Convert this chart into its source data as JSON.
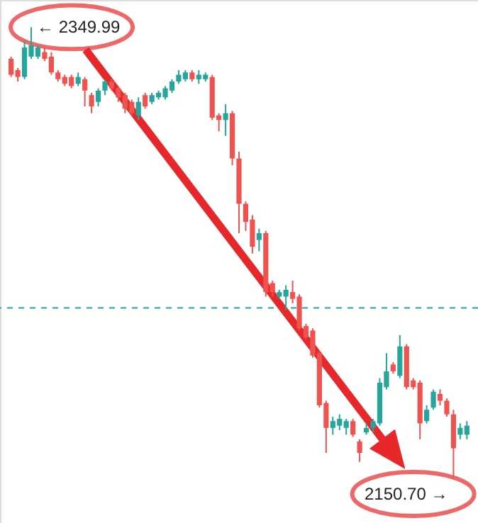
{
  "chart_data": {
    "type": "candlestick",
    "categories": [
      null,
      null,
      null,
      null,
      null,
      null,
      null,
      null,
      null,
      null,
      null,
      null,
      null,
      null,
      null,
      null,
      null,
      null,
      null,
      null,
      null,
      null,
      null,
      null,
      null,
      null,
      null,
      null,
      null,
      null,
      null,
      null,
      null,
      null,
      null,
      null,
      null,
      null,
      null,
      null,
      null,
      null,
      null,
      null,
      null,
      null,
      null,
      null,
      null,
      null,
      null,
      null,
      null,
      null,
      null,
      null,
      null,
      null,
      null,
      null,
      null,
      null,
      null,
      null,
      null,
      null,
      null,
      null,
      null
    ],
    "ohlc": [
      [
        2336,
        2337,
        2328,
        2329
      ],
      [
        2331,
        2332,
        2326,
        2328
      ],
      [
        2328,
        2344,
        2327,
        2341
      ],
      [
        2337,
        2349.99,
        2336,
        2342
      ],
      [
        2337,
        2342,
        2336,
        2341
      ],
      [
        2339,
        2341,
        2335,
        2336
      ],
      [
        2337,
        2339,
        2329,
        2330
      ],
      [
        2330,
        2331,
        2326,
        2327
      ],
      [
        2328,
        2329,
        2324,
        2325
      ],
      [
        2328,
        2329,
        2323,
        2324
      ],
      [
        2325,
        2330,
        2324,
        2328
      ],
      [
        2327,
        2328,
        2315,
        2322
      ],
      [
        2320,
        2321,
        2312,
        2315
      ],
      [
        2317,
        2323,
        2315,
        2322
      ],
      [
        2322,
        2327,
        2320,
        2326
      ],
      [
        2326,
        2327,
        2322,
        2323
      ],
      [
        2323,
        2324,
        2317,
        2319
      ],
      [
        2320,
        2321,
        2312,
        2314
      ],
      [
        2317,
        2318,
        2311,
        2312
      ],
      [
        2311,
        2319,
        2309,
        2317
      ],
      [
        2320,
        2321,
        2314,
        2315
      ],
      [
        2317,
        2321,
        2316,
        2320
      ],
      [
        2319,
        2322,
        2318,
        2321
      ],
      [
        2319,
        2324,
        2318,
        2323
      ],
      [
        2322,
        2327,
        2321,
        2326
      ],
      [
        2326,
        2331,
        2325,
        2329
      ],
      [
        2327,
        2331,
        2326,
        2330
      ],
      [
        2330,
        2331,
        2326,
        2327
      ],
      [
        2327,
        2331,
        2325,
        2329
      ],
      [
        2327,
        2330,
        2326,
        2329
      ],
      [
        2328,
        2329,
        2309,
        2310
      ],
      [
        2311,
        2312,
        2304,
        2309
      ],
      [
        2309,
        2316,
        2302,
        2312
      ],
      [
        2312,
        2313,
        2289,
        2292
      ],
      [
        2292,
        2295,
        2259,
        2272
      ],
      [
        2272,
        2273,
        2260,
        2264
      ],
      [
        2265,
        2267,
        2250,
        2253
      ],
      [
        2256,
        2261,
        2251,
        2259
      ],
      [
        2259,
        2260,
        2231,
        2233
      ],
      [
        2237,
        2238,
        2231,
        2233
      ],
      [
        2231,
        2234,
        2230,
        2233
      ],
      [
        2231,
        2236,
        2225,
        2234
      ],
      [
        2233,
        2238,
        2228,
        2230
      ],
      [
        2231,
        2232,
        2216,
        2217
      ],
      [
        2218,
        2219,
        2212,
        2213
      ],
      [
        2216,
        2217,
        2204,
        2205
      ],
      [
        2206,
        2207,
        2182,
        2183
      ],
      [
        2184,
        2185,
        2162,
        2173
      ],
      [
        2173,
        2178,
        2170,
        2176
      ],
      [
        2174,
        2179,
        2172,
        2177
      ],
      [
        2173,
        2177,
        2170,
        2176
      ],
      [
        2176,
        2177,
        2169,
        2170
      ],
      [
        2167,
        2168,
        2158,
        2162
      ],
      [
        2171,
        2175,
        2170,
        2173
      ],
      [
        2173,
        2177,
        2171,
        2176
      ],
      [
        2175,
        2195,
        2174,
        2193
      ],
      [
        2191,
        2206,
        2190,
        2198
      ],
      [
        2201,
        2202,
        2197,
        2198
      ],
      [
        2196,
        2214,
        2195,
        2209
      ],
      [
        2209,
        2210,
        2190,
        2191
      ],
      [
        2194,
        2195,
        2190,
        2191
      ],
      [
        2193,
        2194,
        2168,
        2175
      ],
      [
        2176,
        2183,
        2175,
        2181
      ],
      [
        2182,
        2190,
        2181,
        2189
      ],
      [
        2188,
        2190,
        2183,
        2185
      ],
      [
        2185,
        2186,
        2178,
        2179
      ],
      [
        2179,
        2181,
        2150.7,
        2164
      ],
      [
        2170,
        2175,
        2168,
        2173
      ],
      [
        2170,
        2176,
        2168,
        2174
      ]
    ],
    "colors": [
      "#ef5350",
      "#ef5350",
      "#26a69a",
      "#26a69a",
      "#26a69a",
      "#ef5350",
      "#ef5350",
      "#ef5350",
      "#ef5350",
      "#ef5350",
      "#26a69a",
      "#ef5350",
      "#ef5350",
      "#26a69a",
      "#26a69a",
      "#ef5350",
      "#ef5350",
      "#ef5350",
      "#ef5350",
      "#26a69a",
      "#ef5350",
      "#26a69a",
      "#26a69a",
      "#26a69a",
      "#26a69a",
      "#26a69a",
      "#26a69a",
      "#ef5350",
      "#26a69a",
      "#26a69a",
      "#ef5350",
      "#ef5350",
      "#26a69a",
      "#ef5350",
      "#ef5350",
      "#ef5350",
      "#ef5350",
      "#26a69a",
      "#ef5350",
      "#ef5350",
      "#26a69a",
      "#26a69a",
      "#ef5350",
      "#ef5350",
      "#ef5350",
      "#ef5350",
      "#ef5350",
      "#ef5350",
      "#26a69a",
      "#26a69a",
      "#26a69a",
      "#ef5350",
      "#ef5350",
      "#26a69a",
      "#26a69a",
      "#26a69a",
      "#26a69a",
      "#ef5350",
      "#26a69a",
      "#ef5350",
      "#ef5350",
      "#ef5350",
      "#26a69a",
      "#26a69a",
      "#ef5350",
      "#ef5350",
      "#ef5350",
      "#26a69a",
      "#26a69a"
    ],
    "ylim": [
      2131,
      2362
    ],
    "tick_labels": false,
    "grid": false,
    "ref_lines": [
      {
        "axis": "y",
        "value": 2226,
        "color": "#26a69a",
        "line_style": "dashed"
      }
    ],
    "annotations": [
      "← 2349.99",
      "2150.70 →"
    ]
  }
}
